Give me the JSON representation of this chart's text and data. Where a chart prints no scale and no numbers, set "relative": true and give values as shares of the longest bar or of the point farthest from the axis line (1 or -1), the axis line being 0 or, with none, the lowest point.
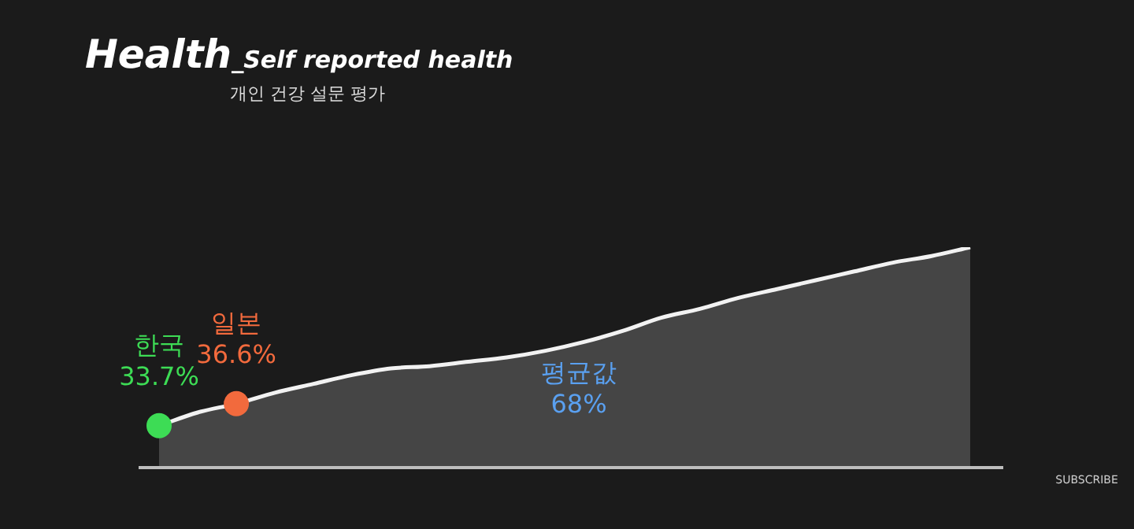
{
  "chart_data": {
    "type": "area",
    "title": "Health_Self reported health",
    "subtitle": "개인 건강 설문 평가",
    "relative": true,
    "categories": [
      null,
      null,
      null,
      null,
      null,
      null,
      null,
      null,
      null,
      null,
      null,
      null,
      null,
      null,
      null,
      null,
      null,
      null,
      null,
      null,
      null,
      null
    ],
    "series": [
      {
        "color": "#f2f2f2",
        "values": [
          0.19,
          0.25,
          0.29,
          0.34,
          0.38,
          0.42,
          0.45,
          0.46,
          0.48,
          0.5,
          0.53,
          0.57,
          0.62,
          0.68,
          0.72,
          0.77,
          0.81,
          0.85,
          0.89,
          0.93,
          0.96,
          1
        ],
        "colors": [
          "#3ddc55",
          null,
          "#f26a3d",
          null,
          null,
          null,
          null,
          null,
          null,
          null,
          null,
          null,
          null,
          null,
          null,
          null,
          null,
          null,
          null,
          null,
          null,
          null
        ]
      }
    ],
    "annotations": [
      "한국\n33.7%",
      "일본\n36.6%",
      "평균값\n68%",
      "SUBSCRIBE"
    ]
  }
}
